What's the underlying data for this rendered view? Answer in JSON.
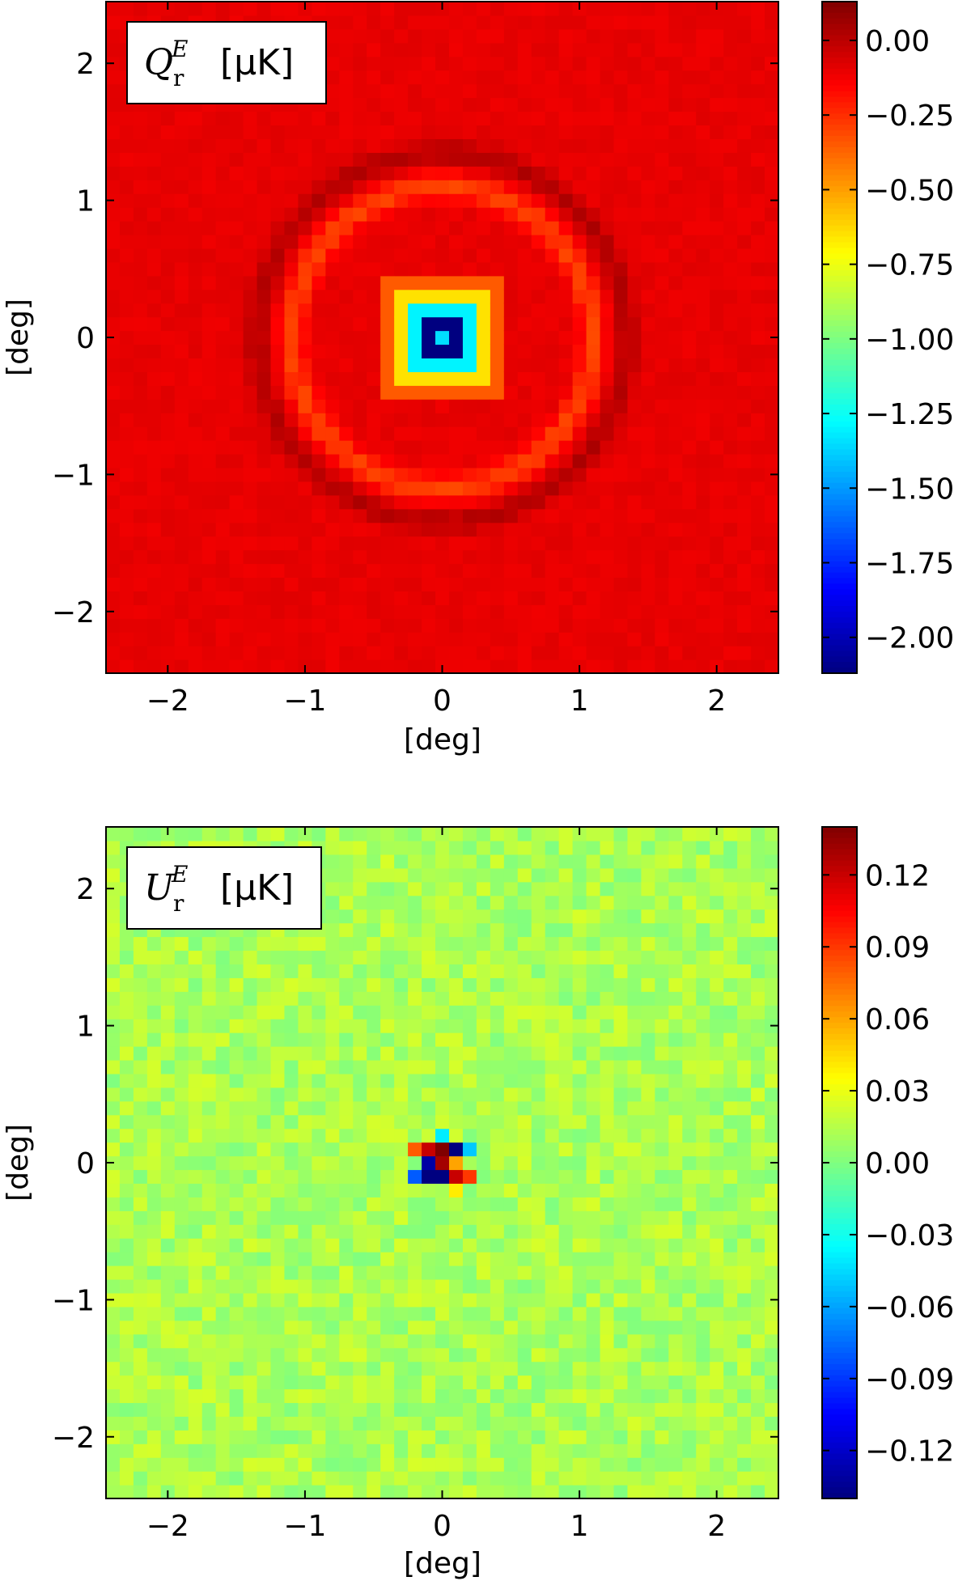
{
  "chart_data": [
    {
      "type": "heatmap",
      "title": {
        "symbol": "Q",
        "sup": "E",
        "sub": "r",
        "unit": "[μK]"
      },
      "xlabel": "[deg]",
      "ylabel": "[deg]",
      "xlim": [
        -2.45,
        2.45
      ],
      "ylim": [
        -2.45,
        2.45
      ],
      "xticks": [
        -2,
        -1,
        0,
        1,
        2
      ],
      "yticks": [
        -2,
        -1,
        0,
        1,
        2
      ],
      "xtick_labels": [
        "−2",
        "−1",
        "0",
        "1",
        "2"
      ],
      "ytick_labels": [
        "−2",
        "−1",
        "0",
        "1",
        "2"
      ],
      "grid": false,
      "colormap": "jet",
      "colorbar": {
        "range": [
          -2.12,
          0.13
        ],
        "ticks": [
          0.0,
          -0.25,
          -0.5,
          -0.75,
          -1.0,
          -1.25,
          -1.5,
          -1.75,
          -2.0
        ],
        "tick_labels": [
          "0.00",
          "−0.25",
          "−0.50",
          "−0.75",
          "−1.00",
          "−1.25",
          "−1.50",
          "−1.75",
          "−2.00"
        ]
      },
      "grid_cells": 49,
      "field": {
        "background": -0.1,
        "noise": 0.02,
        "ring": {
          "radius": 1.1,
          "width": 0.09,
          "amplitude": 0.2
        },
        "outer_ring": {
          "radius": 1.35,
          "width": 0.08,
          "amplitude": -0.12
        },
        "core": {
          "center_value": -1.35,
          "inner_ring_value": -2.12,
          "inner_ring_halfsize": 0.15,
          "halo": [
            {
              "halfsize": 0.25,
              "value": -1.3
            },
            {
              "halfsize": 0.35,
              "value": -0.65
            },
            {
              "halfsize": 0.45,
              "value": -0.35
            }
          ]
        }
      }
    },
    {
      "type": "heatmap",
      "title": {
        "symbol": "U",
        "sup": "E",
        "sub": "r",
        "unit": "[μK]"
      },
      "xlabel": "[deg]",
      "ylabel": "[deg]",
      "xlim": [
        -2.45,
        2.45
      ],
      "ylim": [
        -2.45,
        2.45
      ],
      "xticks": [
        -2,
        -1,
        0,
        1,
        2
      ],
      "yticks": [
        -2,
        -1,
        0,
        1,
        2
      ],
      "xtick_labels": [
        "−2",
        "−1",
        "0",
        "1",
        "2"
      ],
      "ytick_labels": [
        "−2",
        "−1",
        "0",
        "1",
        "2"
      ],
      "grid": false,
      "colormap": "jet",
      "colorbar": {
        "range": [
          -0.14,
          0.14
        ],
        "ticks": [
          0.12,
          0.09,
          0.06,
          0.03,
          0.0,
          -0.03,
          -0.06,
          -0.09,
          -0.12
        ],
        "tick_labels": [
          "0.12",
          "0.09",
          "0.06",
          "0.03",
          "0.00",
          "−0.03",
          "−0.06",
          "−0.09",
          "−0.12"
        ]
      },
      "grid_cells": 49,
      "field": {
        "background": 0.012,
        "noise": 0.012,
        "center_cells": [
          {
            "x": -0.2,
            "y": 0.1,
            "value": 0.08
          },
          {
            "x": -0.1,
            "y": 0.1,
            "value": 0.12
          },
          {
            "x": 0.0,
            "y": 0.1,
            "value": 0.14
          },
          {
            "x": 0.1,
            "y": 0.1,
            "value": -0.14
          },
          {
            "x": 0.2,
            "y": 0.1,
            "value": -0.05
          },
          {
            "x": 0.0,
            "y": 0.2,
            "value": -0.04
          },
          {
            "x": -0.1,
            "y": 0.0,
            "value": -0.13
          },
          {
            "x": 0.0,
            "y": 0.0,
            "value": 0.13
          },
          {
            "x": 0.1,
            "y": 0.0,
            "value": 0.06
          },
          {
            "x": -0.2,
            "y": -0.1,
            "value": -0.08
          },
          {
            "x": -0.1,
            "y": -0.1,
            "value": -0.14
          },
          {
            "x": 0.0,
            "y": -0.1,
            "value": -0.14
          },
          {
            "x": 0.1,
            "y": -0.1,
            "value": 0.12
          },
          {
            "x": 0.2,
            "y": -0.1,
            "value": 0.09
          },
          {
            "x": 0.1,
            "y": -0.2,
            "value": 0.04
          }
        ]
      }
    }
  ]
}
